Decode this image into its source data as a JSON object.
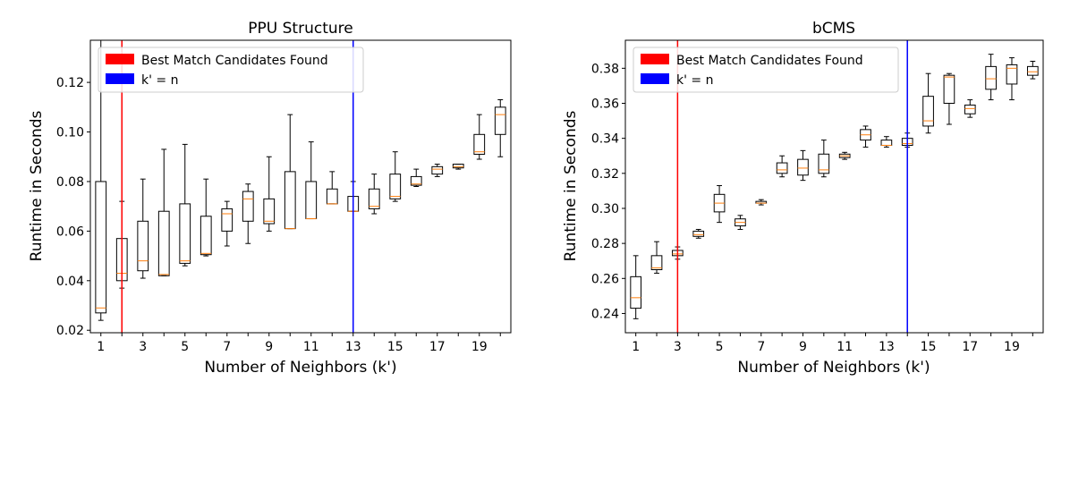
{
  "chart_data": [
    {
      "type": "box",
      "title": "PPU Structure",
      "xlabel": "Number of Neighbors (k')",
      "ylabel": "Runtime in Seconds",
      "xlim": [
        0.5,
        20.5
      ],
      "ylim": [
        0.019,
        0.137
      ],
      "xticks": [
        1,
        3,
        5,
        7,
        9,
        11,
        13,
        15,
        17,
        19
      ],
      "xtick_labels": [
        "1",
        "3",
        "5",
        "7",
        "9",
        "11",
        "13",
        "15",
        "17",
        "19"
      ],
      "yticks": [
        0.02,
        0.04,
        0.06,
        0.08,
        0.1,
        0.12
      ],
      "ytick_labels": [
        "0.02",
        "0.04",
        "0.06",
        "0.08",
        "0.10",
        "0.12"
      ],
      "legend_position": "top-left",
      "vlines": [
        {
          "label": "Best Match Candidates Found",
          "x": 2,
          "color": "#ff0000"
        },
        {
          "label": "k' = n",
          "x": 13,
          "color": "#0000ff"
        }
      ],
      "boxes": [
        {
          "x": 1,
          "whislo": 0.024,
          "q1": 0.027,
          "median": 0.029,
          "q3": 0.08,
          "whishi": 0.15
        },
        {
          "x": 2,
          "whislo": 0.037,
          "q1": 0.04,
          "median": 0.043,
          "q3": 0.057,
          "whishi": 0.072
        },
        {
          "x": 3,
          "whislo": 0.041,
          "q1": 0.044,
          "median": 0.048,
          "q3": 0.064,
          "whishi": 0.081
        },
        {
          "x": 4,
          "whislo": 0.042,
          "q1": 0.042,
          "median": 0.0425,
          "q3": 0.068,
          "whishi": 0.093
        },
        {
          "x": 5,
          "whislo": 0.046,
          "q1": 0.047,
          "median": 0.048,
          "q3": 0.071,
          "whishi": 0.095
        },
        {
          "x": 6,
          "whislo": 0.05,
          "q1": 0.0505,
          "median": 0.051,
          "q3": 0.066,
          "whishi": 0.081
        },
        {
          "x": 7,
          "whislo": 0.054,
          "q1": 0.06,
          "median": 0.067,
          "q3": 0.069,
          "whishi": 0.072
        },
        {
          "x": 8,
          "whislo": 0.055,
          "q1": 0.064,
          "median": 0.073,
          "q3": 0.076,
          "whishi": 0.079
        },
        {
          "x": 9,
          "whislo": 0.06,
          "q1": 0.063,
          "median": 0.064,
          "q3": 0.073,
          "whishi": 0.09
        },
        {
          "x": 10,
          "whislo": 0.061,
          "q1": 0.061,
          "median": 0.061,
          "q3": 0.084,
          "whishi": 0.107
        },
        {
          "x": 11,
          "whislo": 0.065,
          "q1": 0.065,
          "median": 0.065,
          "q3": 0.08,
          "whishi": 0.096
        },
        {
          "x": 12,
          "whislo": 0.071,
          "q1": 0.071,
          "median": 0.071,
          "q3": 0.077,
          "whishi": 0.084
        },
        {
          "x": 13,
          "whislo": 0.068,
          "q1": 0.068,
          "median": 0.068,
          "q3": 0.074,
          "whishi": 0.08
        },
        {
          "x": 14,
          "whislo": 0.067,
          "q1": 0.069,
          "median": 0.07,
          "q3": 0.077,
          "whishi": 0.083
        },
        {
          "x": 15,
          "whislo": 0.072,
          "q1": 0.073,
          "median": 0.074,
          "q3": 0.083,
          "whishi": 0.092
        },
        {
          "x": 16,
          "whislo": 0.078,
          "q1": 0.0785,
          "median": 0.079,
          "q3": 0.082,
          "whishi": 0.085
        },
        {
          "x": 17,
          "whislo": 0.082,
          "q1": 0.083,
          "median": 0.085,
          "q3": 0.086,
          "whishi": 0.087
        },
        {
          "x": 18,
          "whislo": 0.085,
          "q1": 0.0855,
          "median": 0.086,
          "q3": 0.087,
          "whishi": 0.087
        },
        {
          "x": 19,
          "whislo": 0.089,
          "q1": 0.091,
          "median": 0.092,
          "q3": 0.099,
          "whishi": 0.107
        },
        {
          "x": 20,
          "whislo": 0.09,
          "q1": 0.099,
          "median": 0.107,
          "q3": 0.11,
          "whishi": 0.113
        }
      ]
    },
    {
      "type": "box",
      "title": "bCMS",
      "xlabel": "Number of Neighbors (k')",
      "ylabel": "Runtime in Seconds",
      "xlim": [
        0.5,
        20.5
      ],
      "ylim": [
        0.229,
        0.396
      ],
      "xticks": [
        1,
        3,
        5,
        7,
        9,
        11,
        13,
        15,
        17,
        19
      ],
      "xtick_labels": [
        "1",
        "3",
        "5",
        "7",
        "9",
        "11",
        "13",
        "15",
        "17",
        "19"
      ],
      "yticks": [
        0.24,
        0.26,
        0.28,
        0.3,
        0.32,
        0.34,
        0.36,
        0.38
      ],
      "ytick_labels": [
        "0.24",
        "0.26",
        "0.28",
        "0.30",
        "0.32",
        "0.34",
        "0.36",
        "0.38"
      ],
      "legend_position": "top-left",
      "vlines": [
        {
          "label": "Best Match Candidates Found",
          "x": 3,
          "color": "#ff0000"
        },
        {
          "label": "k' = n",
          "x": 14,
          "color": "#0000ff"
        }
      ],
      "boxes": [
        {
          "x": 1,
          "whislo": 0.237,
          "q1": 0.243,
          "median": 0.249,
          "q3": 0.261,
          "whishi": 0.273
        },
        {
          "x": 2,
          "whislo": 0.263,
          "q1": 0.265,
          "median": 0.266,
          "q3": 0.273,
          "whishi": 0.281
        },
        {
          "x": 3,
          "whislo": 0.271,
          "q1": 0.273,
          "median": 0.274,
          "q3": 0.276,
          "whishi": 0.278
        },
        {
          "x": 4,
          "whislo": 0.283,
          "q1": 0.284,
          "median": 0.285,
          "q3": 0.287,
          "whishi": 0.288
        },
        {
          "x": 5,
          "whislo": 0.292,
          "q1": 0.298,
          "median": 0.303,
          "q3": 0.308,
          "whishi": 0.313
        },
        {
          "x": 6,
          "whislo": 0.288,
          "q1": 0.29,
          "median": 0.292,
          "q3": 0.294,
          "whishi": 0.296
        },
        {
          "x": 7,
          "whislo": 0.302,
          "q1": 0.303,
          "median": 0.303,
          "q3": 0.304,
          "whishi": 0.305
        },
        {
          "x": 8,
          "whislo": 0.318,
          "q1": 0.32,
          "median": 0.322,
          "q3": 0.326,
          "whishi": 0.33
        },
        {
          "x": 9,
          "whislo": 0.316,
          "q1": 0.319,
          "median": 0.323,
          "q3": 0.328,
          "whishi": 0.333
        },
        {
          "x": 10,
          "whislo": 0.318,
          "q1": 0.32,
          "median": 0.322,
          "q3": 0.331,
          "whishi": 0.339
        },
        {
          "x": 11,
          "whislo": 0.328,
          "q1": 0.329,
          "median": 0.33,
          "q3": 0.331,
          "whishi": 0.332
        },
        {
          "x": 12,
          "whislo": 0.335,
          "q1": 0.339,
          "median": 0.342,
          "q3": 0.345,
          "whishi": 0.347
        },
        {
          "x": 13,
          "whislo": 0.335,
          "q1": 0.336,
          "median": 0.336,
          "q3": 0.339,
          "whishi": 0.341
        },
        {
          "x": 14,
          "whislo": 0.335,
          "q1": 0.336,
          "median": 0.337,
          "q3": 0.34,
          "whishi": 0.343
        },
        {
          "x": 15,
          "whislo": 0.343,
          "q1": 0.347,
          "median": 0.35,
          "q3": 0.364,
          "whishi": 0.377
        },
        {
          "x": 16,
          "whislo": 0.348,
          "q1": 0.36,
          "median": 0.375,
          "q3": 0.376,
          "whishi": 0.377
        },
        {
          "x": 17,
          "whislo": 0.352,
          "q1": 0.354,
          "median": 0.357,
          "q3": 0.359,
          "whishi": 0.362
        },
        {
          "x": 18,
          "whislo": 0.362,
          "q1": 0.368,
          "median": 0.374,
          "q3": 0.381,
          "whishi": 0.388
        },
        {
          "x": 19,
          "whislo": 0.362,
          "q1": 0.371,
          "median": 0.38,
          "q3": 0.382,
          "whishi": 0.386
        },
        {
          "x": 20,
          "whislo": 0.374,
          "q1": 0.376,
          "median": 0.378,
          "q3": 0.381,
          "whishi": 0.384
        }
      ]
    }
  ]
}
